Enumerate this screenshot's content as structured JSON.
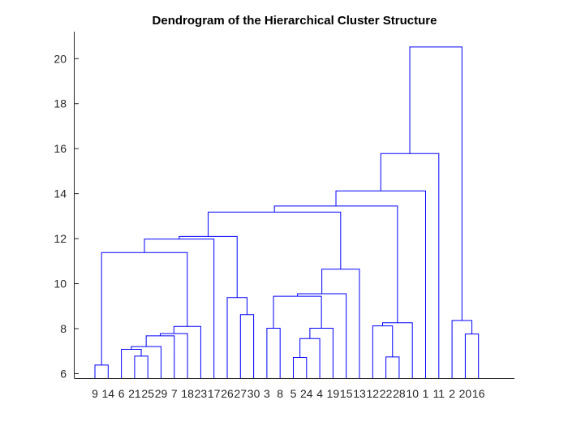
{
  "chart_data": {
    "type": "dendrogram",
    "title": "Dendrogram of the Hierarchical Cluster Structure",
    "xlabel": "",
    "ylabel": "",
    "ylim": [
      5.8,
      21.2
    ],
    "yticks": [
      6,
      8,
      10,
      12,
      14,
      16,
      18,
      20
    ],
    "grid": false,
    "legend": "none",
    "leaf_order": [
      9,
      14,
      6,
      21,
      25,
      29,
      7,
      18,
      23,
      17,
      26,
      27,
      30,
      3,
      8,
      5,
      24,
      4,
      19,
      15,
      13,
      12,
      22,
      28,
      10,
      1,
      11,
      2,
      20,
      16
    ],
    "merges": [
      {
        "id": "a",
        "left": "leaf:9",
        "right": "leaf:14",
        "height": 6.38
      },
      {
        "id": "b",
        "left": "leaf:21",
        "right": "leaf:25",
        "height": 6.78
      },
      {
        "id": "c",
        "left": "leaf:6",
        "right": "b",
        "height": 7.08
      },
      {
        "id": "d",
        "left": "c",
        "right": "leaf:29",
        "height": 7.2
      },
      {
        "id": "e",
        "left": "d",
        "right": "leaf:7",
        "height": 7.68
      },
      {
        "id": "f",
        "left": "e",
        "right": "leaf:18",
        "height": 7.78
      },
      {
        "id": "g",
        "left": "f",
        "right": "leaf:23",
        "height": 8.1
      },
      {
        "id": "h",
        "left": "a",
        "right": "g",
        "height": 11.38
      },
      {
        "id": "i",
        "left": "h",
        "right": "leaf:17",
        "height": 11.98
      },
      {
        "id": "j",
        "left": "leaf:27",
        "right": "leaf:30",
        "height": 8.62
      },
      {
        "id": "k",
        "left": "leaf:26",
        "right": "j",
        "height": 9.38
      },
      {
        "id": "l",
        "left": "i",
        "right": "k",
        "height": 12.1
      },
      {
        "id": "m",
        "left": "leaf:3",
        "right": "leaf:8",
        "height": 8.02
      },
      {
        "id": "n",
        "left": "leaf:5",
        "right": "leaf:24",
        "height": 6.72
      },
      {
        "id": "o",
        "left": "n",
        "right": "leaf:4",
        "height": 7.56
      },
      {
        "id": "p",
        "left": "o",
        "right": "leaf:19",
        "height": 8.02
      },
      {
        "id": "q",
        "left": "m",
        "right": "p",
        "height": 9.44
      },
      {
        "id": "r",
        "left": "q",
        "right": "leaf:15",
        "height": 9.55
      },
      {
        "id": "s",
        "left": "r",
        "right": "leaf:13",
        "height": 10.64
      },
      {
        "id": "t",
        "left": "l",
        "right": "s",
        "height": 13.18
      },
      {
        "id": "u",
        "left": "leaf:22",
        "right": "leaf:28",
        "height": 6.74
      },
      {
        "id": "v",
        "left": "leaf:12",
        "right": "u",
        "height": 8.12
      },
      {
        "id": "w",
        "left": "v",
        "right": "leaf:10",
        "height": 8.26
      },
      {
        "id": "x",
        "left": "t",
        "right": "w",
        "height": 13.45
      },
      {
        "id": "y",
        "left": "x",
        "right": "leaf:1",
        "height": 14.12
      },
      {
        "id": "z",
        "left": "y",
        "right": "leaf:11",
        "height": 15.78
      },
      {
        "id": "aa",
        "left": "leaf:20",
        "right": "leaf:16",
        "height": 7.76
      },
      {
        "id": "ab",
        "left": "leaf:2",
        "right": "aa",
        "height": 8.36
      },
      {
        "id": "ac",
        "left": "z",
        "right": "ab",
        "height": 20.52
      }
    ],
    "leaf_base": 5.8,
    "colors": {
      "link": "#0000ff",
      "axis": "#262626",
      "background": "#ffffff"
    }
  }
}
